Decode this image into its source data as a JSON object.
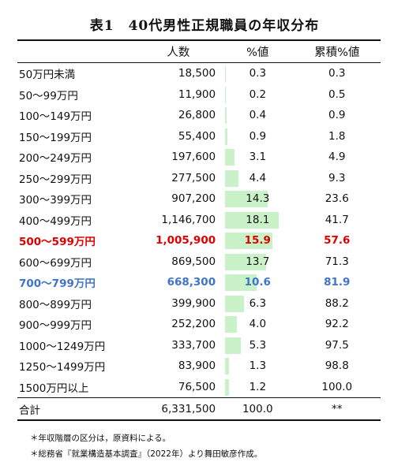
{
  "title": "表1　40代男性正規職員の年収分布",
  "columns": {
    "band": "",
    "population": "人数",
    "percent": "%値",
    "cumulative": "累積%値"
  },
  "rows": [
    {
      "band": "50万円未満",
      "population": "18,500",
      "percent": "0.3",
      "cumulative": "0.3",
      "bar_pct": 0.3
    },
    {
      "band": "50～99万円",
      "population": "11,900",
      "percent": "0.2",
      "cumulative": "0.5",
      "bar_pct": 0.2
    },
    {
      "band": "100～149万円",
      "population": "26,800",
      "percent": "0.4",
      "cumulative": "0.9",
      "bar_pct": 0.4
    },
    {
      "band": "150～199万円",
      "population": "55,400",
      "percent": "0.9",
      "cumulative": "1.8",
      "bar_pct": 0.9
    },
    {
      "band": "200～249万円",
      "population": "197,600",
      "percent": "3.1",
      "cumulative": "4.9",
      "bar_pct": 3.1
    },
    {
      "band": "250～299万円",
      "population": "277,500",
      "percent": "4.4",
      "cumulative": "9.3",
      "bar_pct": 4.4
    },
    {
      "band": "300～399万円",
      "population": "907,200",
      "percent": "14.3",
      "cumulative": "23.6",
      "bar_pct": 14.3
    },
    {
      "band": "400～499万円",
      "population": "1,146,700",
      "percent": "18.1",
      "cumulative": "41.7",
      "bar_pct": 18.1
    },
    {
      "band": "500～599万円",
      "population": "1,005,900",
      "percent": "15.9",
      "cumulative": "57.6",
      "bar_pct": 15.9,
      "highlight": "red"
    },
    {
      "band": "600～699万円",
      "population": "869,500",
      "percent": "13.7",
      "cumulative": "71.3",
      "bar_pct": 13.7
    },
    {
      "band": "700～799万円",
      "population": "668,300",
      "percent": "10.6",
      "cumulative": "81.9",
      "bar_pct": 10.6,
      "highlight": "blue"
    },
    {
      "band": "800～899万円",
      "population": "399,900",
      "percent": "6.3",
      "cumulative": "88.2",
      "bar_pct": 6.3
    },
    {
      "band": "900～999万円",
      "population": "252,200",
      "percent": "4.0",
      "cumulative": "92.2",
      "bar_pct": 4.0
    },
    {
      "band": "1000～1249万円",
      "population": "333,700",
      "percent": "5.3",
      "cumulative": "97.5",
      "bar_pct": 5.3
    },
    {
      "band": "1250～1499万円",
      "population": "83,900",
      "percent": "1.3",
      "cumulative": "98.8",
      "bar_pct": 1.3
    },
    {
      "band": "1500万円以上",
      "population": "76,500",
      "percent": "1.2",
      "cumulative": "100.0",
      "bar_pct": 1.2
    }
  ],
  "total": {
    "band": "合計",
    "population": "6,331,500",
    "percent": "100.0",
    "cumulative": "**"
  },
  "notes": [
    "＊年収階層の区分は，原資料による。",
    "＊総務省『就業構造基本調査』（2022年）より舞田敏彦作成。"
  ],
  "colors": {
    "bar": "#c9f2c9",
    "highlight_red": "#e00000",
    "highlight_blue": "#3f74c7"
  }
}
